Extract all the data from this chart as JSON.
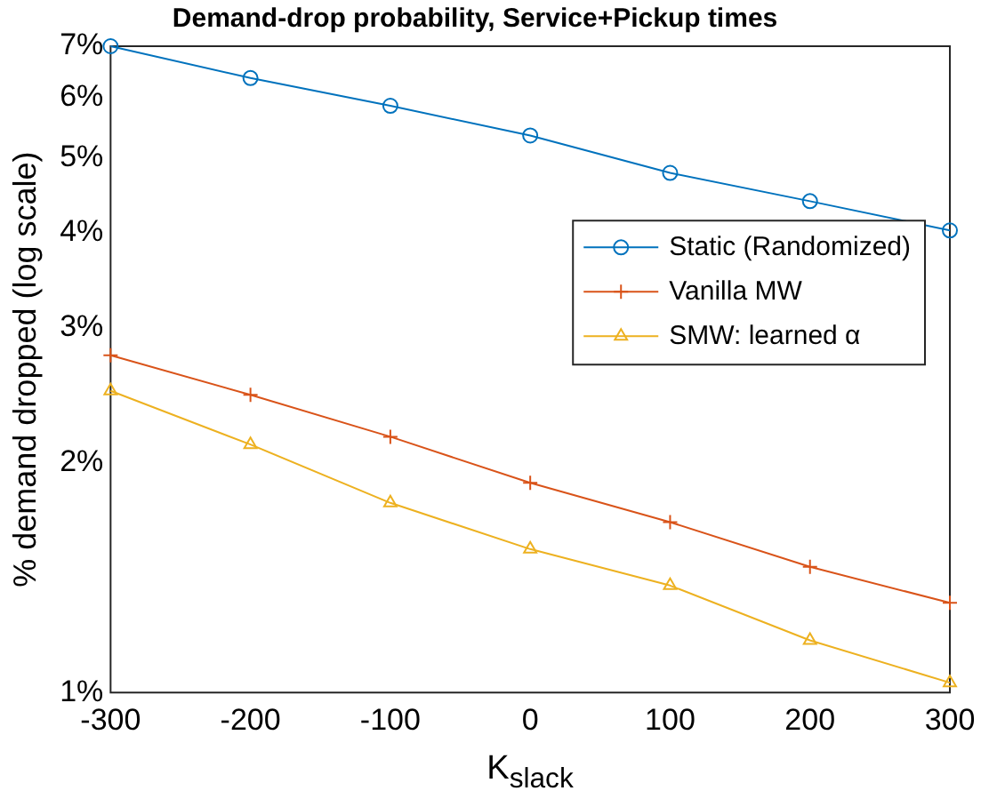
{
  "chart_data": {
    "type": "line",
    "title": "Demand-drop probability, Service+Pickup times",
    "xlabel": "K$_{slack}$",
    "ylabel": "% demand dropped (log scale)",
    "x": [
      -300,
      -200,
      -100,
      0,
      100,
      200,
      300
    ],
    "series": [
      {
        "name": "Static (Randomized)",
        "color": "#0072bd",
        "marker": "circle",
        "values": [
          7.0,
          6.36,
          5.85,
          5.35,
          4.78,
          4.39,
          4.02
        ]
      },
      {
        "name": "Vanilla MW",
        "color": "#d95319",
        "marker": "cross",
        "values": [
          2.76,
          2.45,
          2.16,
          1.88,
          1.67,
          1.46,
          1.31
        ]
      },
      {
        "name": "SMW: learned α",
        "color": "#edb120",
        "marker": "triangle",
        "values": [
          2.48,
          2.11,
          1.77,
          1.54,
          1.38,
          1.17,
          1.03
        ]
      }
    ],
    "log": "y",
    "xlim": [
      -300,
      300
    ],
    "ylim": [
      1,
      7
    ],
    "xticks": [
      -300,
      -200,
      -100,
      0,
      100,
      200,
      300
    ],
    "yticks": [
      {
        "value": 1,
        "label": "1%"
      },
      {
        "value": 2,
        "label": "2%"
      },
      {
        "value": 3,
        "label": "3%"
      },
      {
        "value": 4,
        "label": "4%"
      },
      {
        "value": 5,
        "label": "5%"
      },
      {
        "value": 6,
        "label": "6%"
      },
      {
        "value": 7,
        "label": "7%"
      }
    ],
    "grid": false,
    "legend": "right",
    "line_style": "solid"
  }
}
